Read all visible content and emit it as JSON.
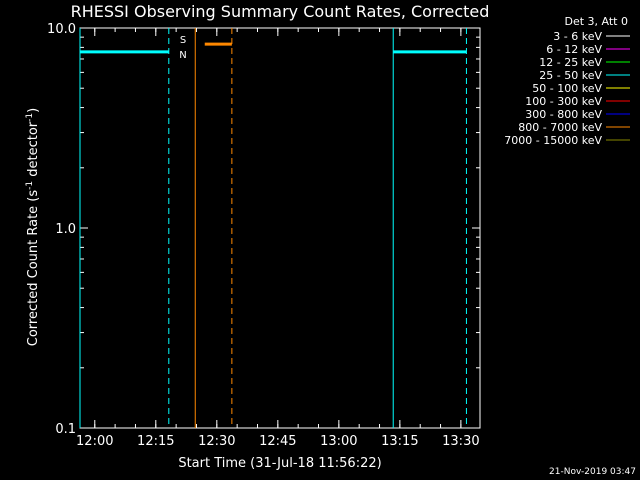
{
  "chart_data": {
    "type": "line",
    "title": "RHESSI Observing Summary Count Rates, Corrected",
    "xlabel": "Start Time (31-Jul-18 11:56:22)",
    "ylabel_main": "Corrected Count Rate (s",
    "ylabel_sup1": "-1",
    "ylabel_mid": " detector",
    "ylabel_sup2": "-1",
    "ylabel_end": ")",
    "xlim_seconds_after_start": [
      0,
      2688
    ],
    "ylim": [
      0.1,
      10.0
    ],
    "yscale": "log",
    "x_ticks": [
      {
        "label": "12:00",
        "sec": 218
      },
      {
        "label": "12:15",
        "sec": 1118
      },
      {
        "label": "12:30",
        "sec": 2018
      },
      {
        "label": "12:45",
        "sec": 2918
      },
      {
        "label": "13:00",
        "sec": 3818
      },
      {
        "label": "13:15",
        "sec": 4718
      },
      {
        "label": "13:30",
        "sec": 5618
      }
    ],
    "y_ticks": [
      {
        "label": "10.0",
        "value": 10.0
      },
      {
        "label": "1.0",
        "value": 1.0
      },
      {
        "label": "0.1",
        "value": 0.1
      }
    ],
    "legend": {
      "header": "Det 3, Att 0",
      "entries": [
        {
          "label": "3 - 6 keV",
          "color": "#ffffff"
        },
        {
          "label": "6 - 12 keV",
          "color": "#ff00ff"
        },
        {
          "label": "12 - 25 keV",
          "color": "#00ff00"
        },
        {
          "label": "25 - 50 keV",
          "color": "#00ffff"
        },
        {
          "label": "50 - 100 keV",
          "color": "#ffff00"
        },
        {
          "label": "100 - 300 keV",
          "color": "#ff0000"
        },
        {
          "label": "300 - 800 keV",
          "color": "#0000ff"
        },
        {
          "label": "800 - 7000 keV",
          "color": "#ff8800"
        },
        {
          "label": "7000 - 15000 keV",
          "color": "#888800"
        }
      ]
    },
    "series": [
      {
        "label_ref": "25 - 50 keV",
        "color": "#00ffff",
        "segments": [
          [
            0,
            1310,
            7.6
          ],
          [
            4620,
            5700,
            7.6
          ]
        ]
      },
      {
        "label_ref": "800 - 7000 keV",
        "color": "#ff8800",
        "segments": [
          [
            1840,
            2240,
            8.3
          ]
        ]
      }
    ],
    "markers": [
      {
        "type": "solid",
        "color": "#00ffff",
        "x": 0
      },
      {
        "type": "dashed",
        "color": "#00ffff",
        "x": 1310
      },
      {
        "type": "solid",
        "color": "#ff8800",
        "x": 1700
      },
      {
        "type": "dashed",
        "color": "#ff8800",
        "x": 2240
      },
      {
        "type": "solid",
        "color": "#00ffff",
        "x": 4620
      },
      {
        "type": "dashed",
        "color": "#00ffff",
        "x": 5700
      }
    ],
    "annotations": [
      {
        "text": "S",
        "color": "#ff8800",
        "x": 1520,
        "y": 8.8
      },
      {
        "text": "N",
        "color": "#00ffff",
        "x": 1520,
        "y": 7.4
      }
    ],
    "footer_date": "21-Nov-2019 03:47"
  }
}
